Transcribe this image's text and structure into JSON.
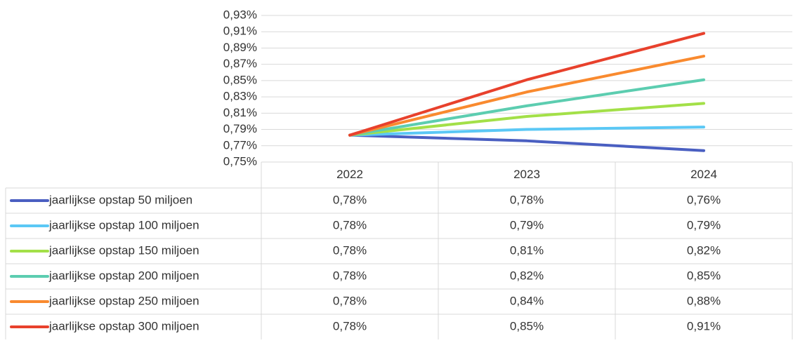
{
  "chart_data": {
    "type": "line",
    "categories": [
      "2022",
      "2023",
      "2024"
    ],
    "ylim": [
      0.75,
      0.93
    ],
    "yticks": [
      {
        "value": 0.75,
        "label": "0,75%"
      },
      {
        "value": 0.77,
        "label": "0,77%"
      },
      {
        "value": 0.79,
        "label": "0,79%"
      },
      {
        "value": 0.81,
        "label": "0,81%"
      },
      {
        "value": 0.83,
        "label": "0,83%"
      },
      {
        "value": 0.85,
        "label": "0,85%"
      },
      {
        "value": 0.87,
        "label": "0,87%"
      },
      {
        "value": 0.89,
        "label": "0,89%"
      },
      {
        "value": 0.91,
        "label": "0,91%"
      },
      {
        "value": 0.93,
        "label": "0,93%"
      }
    ],
    "grid": true,
    "series": [
      {
        "name": "jaarlijkse opstap 50 miljoen",
        "color": "#4a5fc1",
        "values": [
          0.783,
          0.776,
          0.764
        ],
        "value_labels": [
          "0,78%",
          "0,78%",
          "0,76%"
        ]
      },
      {
        "name": "jaarlijkse opstap 100 miljoen",
        "color": "#5bc8f5",
        "values": [
          0.783,
          0.79,
          0.793
        ],
        "value_labels": [
          "0,78%",
          "0,79%",
          "0,79%"
        ]
      },
      {
        "name": "jaarlijkse opstap 150 miljoen",
        "color": "#a3e048",
        "values": [
          0.783,
          0.806,
          0.822
        ],
        "value_labels": [
          "0,78%",
          "0,81%",
          "0,82%"
        ]
      },
      {
        "name": "jaarlijkse opstap 200 miljoen",
        "color": "#5ccdb0",
        "values": [
          0.783,
          0.819,
          0.851
        ],
        "value_labels": [
          "0,78%",
          "0,82%",
          "0,85%"
        ]
      },
      {
        "name": "jaarlijkse opstap 250 miljoen",
        "color": "#f98a2f",
        "values": [
          0.783,
          0.836,
          0.88
        ],
        "value_labels": [
          "0,78%",
          "0,84%",
          "0,88%"
        ]
      },
      {
        "name": "jaarlijkse opstap 300 miljoen",
        "color": "#e8412c",
        "values": [
          0.783,
          0.851,
          0.908
        ],
        "value_labels": [
          "0,78%",
          "0,85%",
          "0,91%"
        ]
      }
    ]
  }
}
